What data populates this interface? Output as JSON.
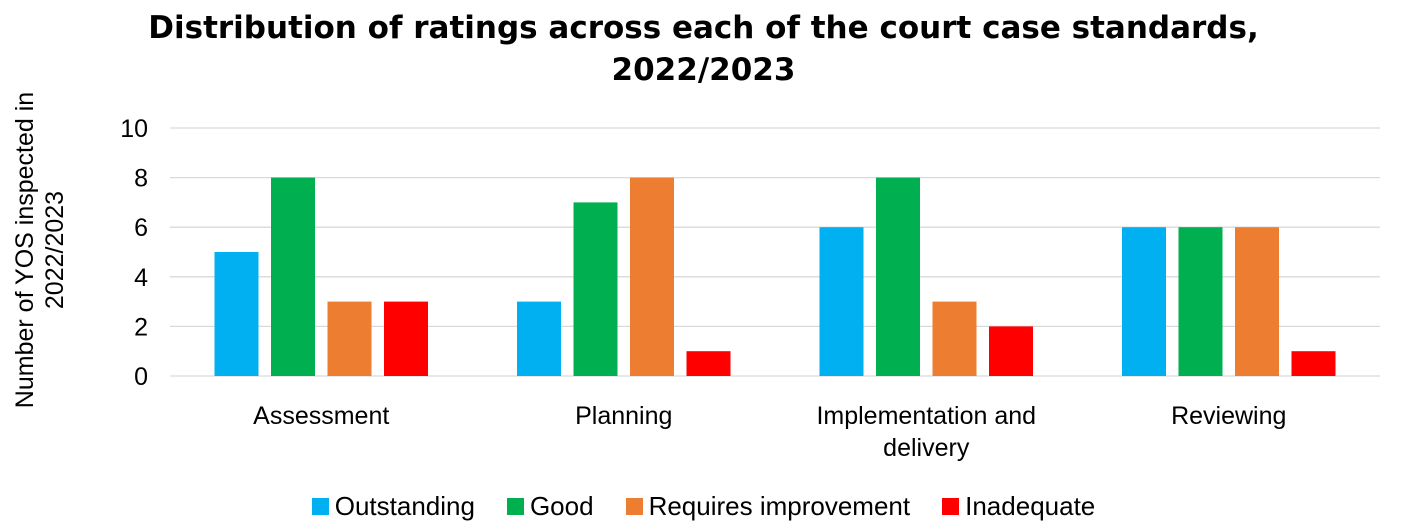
{
  "chart_data": {
    "type": "bar",
    "title_lines": [
      "Distribution of ratings across each of the court case standards,",
      "2022/2023"
    ],
    "ylabel_lines": [
      "Number of YOS inspected in",
      "2022/2023"
    ],
    "xlabel": "",
    "categories": [
      [
        "Assessment"
      ],
      [
        "Planning"
      ],
      [
        "Implementation and",
        "delivery"
      ],
      [
        "Reviewing"
      ]
    ],
    "series": [
      {
        "name": "Outstanding",
        "color": "#00b0f0",
        "values": [
          5,
          3,
          6,
          6
        ]
      },
      {
        "name": "Good",
        "color": "#00b050",
        "values": [
          8,
          7,
          8,
          6
        ]
      },
      {
        "name": "Requires improvement",
        "color": "#ed7d31",
        "values": [
          3,
          8,
          3,
          6
        ]
      },
      {
        "name": "Inadequate",
        "color": "#ff0000",
        "values": [
          3,
          1,
          2,
          1
        ]
      }
    ],
    "ylim": [
      0,
      10
    ],
    "yticks": [
      0,
      2,
      4,
      6,
      8,
      10
    ],
    "grid": true,
    "legend_position": "bottom"
  }
}
